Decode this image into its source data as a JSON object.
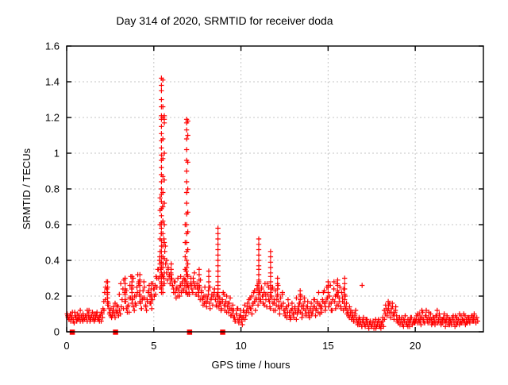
{
  "chart_data": {
    "type": "scatter",
    "title": "Day 314 of 2020, SRMTID for receiver doda",
    "xlabel": "GPS time / hours",
    "ylabel": "SRMTID / TECUs",
    "xlim": [
      0,
      23.91
    ],
    "ylim": [
      0,
      1.6
    ],
    "xticks": [
      0,
      5,
      10,
      15,
      20
    ],
    "xtick_labels": [
      "0",
      "5",
      "10",
      "15",
      "20"
    ],
    "yticks": [
      0,
      0.2,
      0.4,
      0.6,
      0.8,
      1.0,
      1.2,
      1.4,
      1.6
    ],
    "ytick_labels": [
      "0",
      "0.2",
      "0.4",
      "0.6",
      "0.8",
      "1",
      "1.2",
      "1.4",
      "1.6"
    ],
    "grid": true,
    "legend_position": "none",
    "marker": "plus",
    "marker_color": "#ff0000",
    "grid_color": "#c4c4c4",
    "border_color": "#000000",
    "y_scale": 0.01,
    "series_runs": [
      {
        "x0": 0.03,
        "dx": 0.05,
        "y": [
          10,
          8,
          7,
          9,
          6,
          8,
          11,
          7,
          5,
          9,
          8,
          6,
          10,
          7,
          8,
          12,
          9,
          7,
          6,
          8
        ]
      },
      {
        "x0": 1.03,
        "dx": 0.05,
        "y": [
          7,
          9,
          8,
          6,
          10,
          12,
          8,
          7,
          9,
          11,
          8,
          6,
          7,
          10,
          9,
          7,
          8,
          6,
          9,
          11
        ]
      },
      {
        "x0": 2.03,
        "dx": 0.05,
        "y": [
          10,
          13,
          17,
          22,
          25,
          28,
          21,
          16,
          13,
          11,
          9,
          8,
          11,
          14,
          10,
          8,
          12,
          15,
          11,
          9
        ]
      },
      {
        "x0": 3.03,
        "dx": 0.05,
        "y": [
          12,
          10,
          14,
          18,
          24,
          29,
          22,
          17,
          13,
          11,
          15,
          19,
          26,
          31,
          24,
          18,
          14,
          12,
          16,
          20
        ]
      },
      {
        "x0": 4.03,
        "dx": 0.05,
        "y": [
          25,
          32,
          27,
          21,
          16,
          13,
          18,
          23,
          28,
          19,
          15,
          12,
          17,
          22,
          26,
          20,
          16,
          13,
          18,
          24
        ]
      },
      {
        "x0": 5.03,
        "dx": 0.05,
        "y": [
          20,
          26,
          31,
          25,
          35,
          30,
          40,
          35,
          28,
          32,
          38,
          30,
          45,
          38,
          33,
          29,
          35,
          31,
          27,
          33
        ]
      },
      {
        "x0": 6.03,
        "dx": 0.05,
        "y": [
          30,
          26,
          24,
          28,
          22,
          19,
          25,
          30,
          23,
          20,
          26,
          22,
          28,
          24,
          30,
          26,
          22,
          27,
          32,
          25
        ]
      },
      {
        "x0": 7.03,
        "dx": 0.05,
        "y": [
          21,
          26,
          30,
          26,
          22,
          28,
          33,
          25,
          21,
          27,
          24,
          20,
          25,
          29,
          22,
          18,
          15,
          20,
          25,
          17
        ]
      },
      {
        "x0": 8.03,
        "dx": 0.05,
        "y": [
          14,
          19,
          23,
          16,
          13,
          18,
          21,
          15,
          20,
          24,
          18,
          15,
          21,
          17,
          14,
          19,
          16,
          13,
          18,
          22
        ]
      },
      {
        "x0": 9.03,
        "dx": 0.05,
        "y": [
          15,
          12,
          17,
          20,
          14,
          11,
          16,
          19,
          13,
          10,
          15,
          12,
          8,
          6,
          10,
          13,
          7,
          5,
          9,
          12
        ]
      },
      {
        "x0": 10.03,
        "dx": 0.05,
        "y": [
          6,
          4,
          8,
          11,
          7,
          9,
          12,
          16,
          11,
          14,
          19,
          13,
          10,
          15,
          22,
          17,
          12,
          18,
          24,
          15
        ]
      },
      {
        "x0": 11.03,
        "dx": 0.05,
        "y": [
          28,
          22,
          18,
          25,
          20,
          16,
          22,
          27,
          18,
          14,
          21,
          25,
          17,
          13,
          19,
          24,
          16,
          12,
          18,
          23
        ]
      },
      {
        "x0": 12.03,
        "dx": 0.05,
        "y": [
          15,
          20,
          26,
          17,
          13,
          19,
          14,
          22,
          16,
          12,
          10,
          13,
          8,
          11,
          15,
          9,
          7,
          12,
          16,
          10
        ]
      },
      {
        "x0": 13.03,
        "dx": 0.05,
        "y": [
          8,
          13,
          11,
          7,
          10,
          14,
          12,
          16,
          20,
          14,
          10,
          15,
          19,
          12,
          9,
          14,
          17,
          11,
          8,
          13
        ]
      },
      {
        "x0": 14.03,
        "dx": 0.05,
        "y": [
          16,
          10,
          12,
          18,
          14,
          9,
          13,
          17,
          11,
          15,
          10,
          13,
          14,
          18,
          22,
          16,
          12,
          17,
          25,
          19
        ]
      },
      {
        "x0": 15.03,
        "dx": 0.05,
        "y": [
          14,
          20,
          26,
          16,
          12,
          18,
          24,
          17,
          13,
          21,
          27,
          15,
          19,
          25,
          14,
          22,
          17,
          12,
          16,
          20
        ]
      },
      {
        "x0": 16.03,
        "dx": 0.05,
        "y": [
          13,
          10,
          12,
          9,
          14,
          10,
          7,
          11,
          8,
          6,
          9,
          12,
          7,
          5,
          6,
          4,
          7,
          5,
          3,
          6
        ]
      },
      {
        "x0": 17.03,
        "dx": 0.05,
        "y": [
          8,
          4,
          3,
          5,
          7,
          4,
          2,
          5,
          6,
          3,
          4,
          6,
          2,
          5,
          7,
          3,
          4,
          6,
          3,
          5
        ]
      },
      {
        "x0": 18.03,
        "dx": 0.05,
        "y": [
          2,
          4,
          6,
          3,
          7,
          10,
          13,
          9,
          12,
          15,
          11,
          8,
          13,
          16,
          10,
          7,
          11,
          14,
          9,
          6
        ]
      },
      {
        "x0": 19.03,
        "dx": 0.05,
        "y": [
          5,
          7,
          4,
          6,
          8,
          5,
          3,
          6,
          9,
          5,
          4,
          7,
          5,
          3,
          6,
          8,
          4,
          6,
          5,
          7
        ]
      },
      {
        "x0": 20.03,
        "dx": 0.05,
        "y": [
          6,
          9,
          5,
          7,
          10,
          6,
          4,
          8,
          11,
          6,
          5,
          9,
          12,
          7,
          5,
          8,
          6,
          10,
          7,
          5
        ]
      },
      {
        "x0": 21.03,
        "dx": 0.05,
        "y": [
          5,
          8,
          4,
          6,
          9,
          5,
          7,
          10,
          6,
          4,
          7,
          5,
          8,
          6,
          3,
          6,
          9,
          5,
          7,
          4
        ]
      },
      {
        "x0": 22.03,
        "dx": 0.05,
        "y": [
          6,
          4,
          7,
          9,
          5,
          3,
          6,
          8,
          5,
          7,
          4,
          6,
          9,
          5,
          7,
          10,
          6,
          4,
          7,
          5
        ]
      },
      {
        "x0": 23.03,
        "dx": 0.05,
        "y": [
          6,
          8,
          5,
          7,
          9,
          6,
          8,
          10,
          7,
          5,
          8,
          6
        ]
      },
      {
        "x0": 0.06,
        "dx": 0.08,
        "y": [
          9,
          7,
          10,
          8,
          6,
          11,
          8,
          7,
          9,
          6,
          8,
          10,
          7,
          9,
          12,
          8,
          6,
          9,
          7,
          10,
          8,
          11,
          7,
          9,
          6
        ]
      },
      {
        "x0": 2.06,
        "dx": 0.08,
        "y": [
          8,
          12,
          18,
          24,
          15,
          10,
          13,
          9,
          12,
          16,
          11,
          14,
          21,
          27,
          18,
          13,
          17,
          23,
          14,
          11,
          19,
          26,
          30,
          20,
          15
        ]
      },
      {
        "x0": 4.06,
        "dx": 0.08,
        "y": [
          22,
          28,
          17,
          13,
          19,
          25,
          14,
          18,
          23,
          16,
          20,
          27,
          24,
          21,
          30,
          35,
          42,
          55,
          70,
          52,
          48,
          40,
          36,
          32,
          30
        ]
      },
      {
        "x0": 6.06,
        "dx": 0.08,
        "y": [
          26,
          22,
          28,
          24,
          20,
          25,
          31,
          27,
          23,
          29,
          34,
          26,
          22,
          27,
          24,
          30,
          26,
          21,
          25,
          22,
          18,
          23,
          19,
          16,
          20
        ]
      },
      {
        "x0": 8.06,
        "dx": 0.08,
        "y": [
          17,
          21,
          25,
          19,
          15,
          22,
          18,
          14,
          19,
          16,
          12,
          17,
          21,
          15,
          11,
          16,
          13,
          9,
          12,
          8,
          6,
          10,
          13,
          7,
          9
        ]
      },
      {
        "x0": 10.06,
        "dx": 0.08,
        "y": [
          8,
          12,
          15,
          11,
          14,
          18,
          13,
          20,
          16,
          23,
          19,
          26,
          22,
          17,
          24,
          20,
          15,
          21,
          27,
          18,
          14,
          20,
          25,
          16,
          12
        ]
      },
      {
        "x0": 12.06,
        "dx": 0.08,
        "y": [
          18,
          14,
          10,
          15,
          21,
          12,
          9,
          14,
          18,
          11,
          8,
          13,
          10,
          14,
          19,
          12,
          16,
          11,
          8,
          13,
          17,
          10,
          14,
          9,
          12
        ]
      },
      {
        "x0": 14.06,
        "dx": 0.08,
        "y": [
          10,
          14,
          18,
          12,
          16,
          22,
          15,
          11,
          17,
          23,
          14,
          19,
          26,
          16,
          12,
          18,
          28,
          20,
          15,
          22,
          17,
          13,
          19,
          24,
          14
        ]
      },
      {
        "x0": 16.06,
        "dx": 0.08,
        "y": [
          16,
          11,
          8,
          12,
          9,
          6,
          10,
          7,
          4,
          8,
          5,
          3,
          6,
          4,
          7,
          5,
          2,
          5,
          3,
          6,
          4,
          2,
          5,
          7,
          3
        ]
      },
      {
        "x0": 18.06,
        "dx": 0.08,
        "y": [
          5,
          8,
          12,
          15,
          10,
          13,
          16,
          11,
          14,
          9,
          12,
          7,
          5,
          8,
          6,
          4,
          7,
          9,
          5,
          3,
          6,
          8,
          4,
          6,
          5
        ]
      },
      {
        "x0": 20.06,
        "dx": 0.08,
        "y": [
          7,
          10,
          6,
          8,
          12,
          7,
          5,
          9,
          6,
          11,
          7,
          4,
          8,
          6,
          9,
          12,
          6,
          8,
          5,
          7,
          10,
          6,
          8,
          4,
          7
        ]
      },
      {
        "x0": 22.06,
        "dx": 0.08,
        "y": [
          5,
          8,
          6,
          9,
          4,
          7,
          10,
          5,
          7,
          6,
          9,
          5,
          8,
          6,
          7,
          9,
          6,
          8
        ]
      }
    ],
    "spike_columns": [
      {
        "x": 5.36,
        "ys": [
          75,
          68,
          60,
          52,
          45,
          38,
          31,
          25
        ]
      },
      {
        "x": 5.44,
        "ys": [
          142,
          138,
          135,
          130,
          126,
          121,
          119,
          115,
          111,
          107,
          103,
          99,
          96,
          92,
          88,
          84,
          80,
          77,
          73,
          69,
          65,
          61,
          58,
          55,
          51,
          48,
          45,
          42,
          39,
          36,
          33,
          30,
          27,
          24,
          22
        ]
      },
      {
        "x": 5.52,
        "ys": [
          141,
          126,
          120,
          108,
          97,
          87,
          78,
          70,
          62,
          55,
          48,
          42,
          36,
          31,
          26,
          22
        ]
      },
      {
        "x": 5.6,
        "ys": [
          121,
          119,
          117,
          100,
          85,
          72,
          60,
          50,
          41,
          33,
          27
        ]
      },
      {
        "x": 6.8,
        "ys": [
          60,
          50,
          42,
          35,
          29
        ]
      },
      {
        "x": 6.88,
        "ys": [
          119,
          117,
          113,
          108,
          102,
          96,
          90,
          84,
          78,
          72,
          66,
          60,
          55,
          50,
          45,
          40,
          36,
          32,
          28,
          25,
          22
        ]
      },
      {
        "x": 6.95,
        "ys": [
          118,
          110,
          95,
          80,
          67,
          56,
          46,
          38,
          31,
          26,
          21
        ]
      },
      {
        "x": 8.68,
        "ys": [
          58,
          55,
          52,
          49,
          46,
          43,
          40,
          37,
          34,
          31,
          28,
          26,
          24,
          22,
          20
        ]
      },
      {
        "x": 11.02,
        "ys": [
          52,
          49,
          46,
          43,
          40,
          37,
          35,
          32,
          29,
          27,
          25,
          23,
          21,
          19
        ]
      },
      {
        "x": 11.7,
        "ys": [
          45,
          42,
          39,
          36,
          33,
          31,
          28,
          26,
          24,
          22,
          20
        ]
      },
      {
        "x": 2.35,
        "ys": [
          28,
          25,
          22,
          19,
          17,
          15
        ]
      },
      {
        "x": 3.35,
        "ys": [
          30,
          27,
          24,
          21,
          18
        ]
      },
      {
        "x": 3.75,
        "ys": [
          31,
          28,
          25,
          22,
          19,
          16
        ]
      },
      {
        "x": 4.2,
        "ys": [
          32,
          29,
          26,
          23,
          20,
          17
        ]
      },
      {
        "x": 4.85,
        "ys": [
          27,
          24,
          21,
          18
        ]
      },
      {
        "x": 6.0,
        "ys": [
          38,
          35,
          32,
          29
        ]
      },
      {
        "x": 7.6,
        "ys": [
          35,
          32,
          29,
          26
        ]
      },
      {
        "x": 8.15,
        "ys": [
          34,
          31,
          28,
          25
        ]
      },
      {
        "x": 12.1,
        "ys": [
          30,
          27,
          24,
          21
        ]
      },
      {
        "x": 13.4,
        "ys": [
          23,
          21,
          18
        ]
      },
      {
        "x": 15.0,
        "ys": [
          28,
          25,
          22
        ]
      },
      {
        "x": 15.55,
        "ys": [
          29,
          26,
          23,
          20
        ]
      },
      {
        "x": 15.95,
        "ys": [
          30,
          27,
          24,
          21,
          18
        ]
      },
      {
        "x": 18.45,
        "ys": [
          17,
          15,
          13
        ]
      },
      {
        "x": 16.95,
        "ys": [
          26
        ]
      }
    ],
    "axis_gap_squares": [
      0.32,
      2.8,
      7.05,
      8.95
    ]
  }
}
